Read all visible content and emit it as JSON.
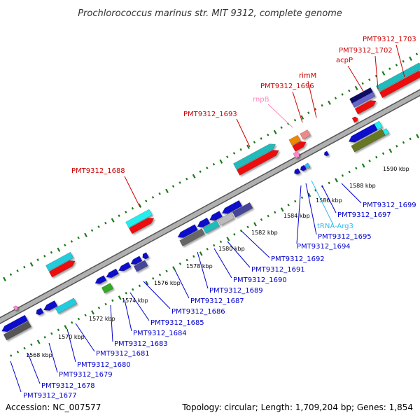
{
  "title": "Prochlorococcus marinus str. MIT 9312, complete genome",
  "footer": {
    "accession": "Accession: NC_007577",
    "summary": "Topology: circular; Length: 1,709,204 bp; Genes: 1,854"
  },
  "colors": {
    "backbone": "#b0b0b0",
    "tick_green": "#1a7a1a",
    "label_forward": "#cc0000",
    "label_reverse": "#0000cc",
    "label_rna_pink": "#ff88bb",
    "label_trna": "#33bbee"
  },
  "kbp_ticks": [
    {
      "text": "1568 kbp",
      "value": 1568
    },
    {
      "text": "1570 kbp",
      "value": 1570
    },
    {
      "text": "1572 kbp",
      "value": 1572
    },
    {
      "text": "1574 kbp",
      "value": 1574
    },
    {
      "text": "1576 kbp",
      "value": 1576
    },
    {
      "text": "1578 kbp",
      "value": 1578
    },
    {
      "text": "1580 kbp",
      "value": 1580
    },
    {
      "text": "1582 kbp",
      "value": 1582
    },
    {
      "text": "1584 kbp",
      "value": 1584
    },
    {
      "text": "1586 kbp",
      "value": 1586
    },
    {
      "text": "1588 kbp",
      "value": 1588
    },
    {
      "text": "1590 kbp",
      "value": 1590
    }
  ],
  "forward_labels": [
    "PMT9312_1688",
    "PMT9312_1693",
    "rnpB",
    "PMT9312_1696",
    "rimM",
    "acpP",
    "PMT9312_1702",
    "PMT9312_1703"
  ],
  "reverse_labels": [
    "PMT9312_1677",
    "PMT9312_1678",
    "PMT9312_1679",
    "PMT9312_1680",
    "PMT9312_1681",
    "PMT9312_1683",
    "PMT9312_1684",
    "PMT9312_1685",
    "PMT9312_1686",
    "PMT9312_1687",
    "PMT9312_1689",
    "PMT9312_1690",
    "PMT9312_1691",
    "PMT9312_1692",
    "PMT9312_1694",
    "PMT9312_1695",
    "tRNA-Arg3",
    "PMT9312_1697",
    "PMT9312_1699"
  ]
}
